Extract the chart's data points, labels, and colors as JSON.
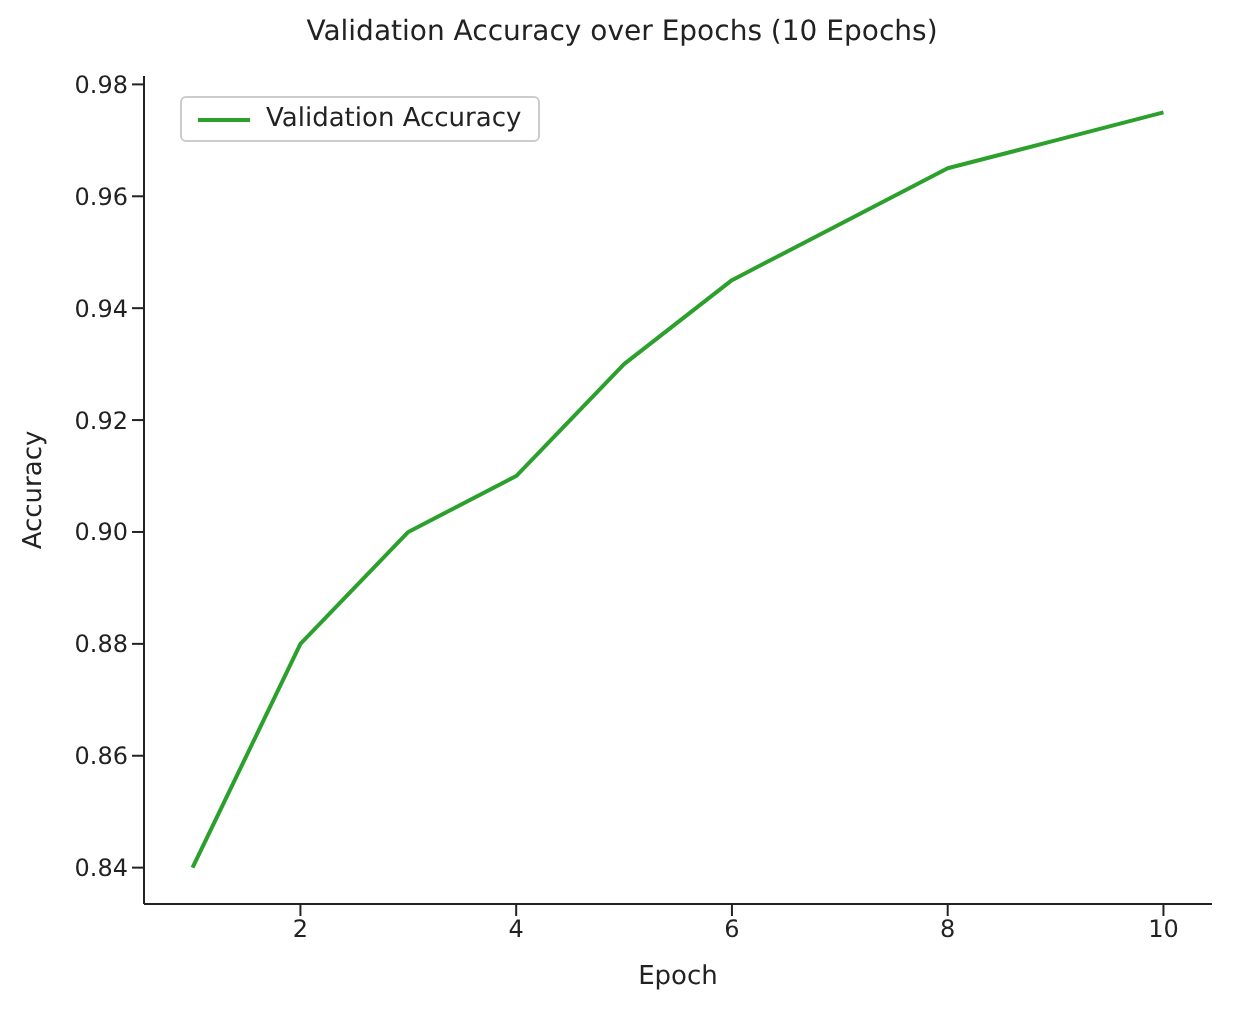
{
  "chart_data": {
    "type": "line",
    "title": "Validation Accuracy over Epochs (10 Epochs)",
    "xlabel": "Epoch",
    "ylabel": "Accuracy",
    "x": [
      1,
      2,
      3,
      4,
      5,
      6,
      7,
      8,
      9,
      10
    ],
    "series": [
      {
        "name": "Validation Accuracy",
        "color": "#2ca02c",
        "values": [
          0.84,
          0.88,
          0.9,
          0.91,
          0.93,
          0.945,
          0.955,
          0.965,
          0.97,
          0.975
        ]
      }
    ],
    "xlim": [
      0.55,
      10.45
    ],
    "xticks": [
      2,
      4,
      6,
      8,
      10
    ],
    "ylim": [
      0.8335,
      0.9815
    ],
    "yticks": [
      {
        "value": 0.84,
        "label": "0.84"
      },
      {
        "value": 0.86,
        "label": "0.86"
      },
      {
        "value": 0.88,
        "label": "0.88"
      },
      {
        "value": 0.9,
        "label": "0.90"
      },
      {
        "value": 0.92,
        "label": "0.92"
      },
      {
        "value": 0.94,
        "label": "0.94"
      },
      {
        "value": 0.96,
        "label": "0.96"
      },
      {
        "value": 0.98,
        "label": "0.98"
      }
    ],
    "legend": "top left",
    "marker": "none",
    "line_style": "solid",
    "grid": false
  }
}
